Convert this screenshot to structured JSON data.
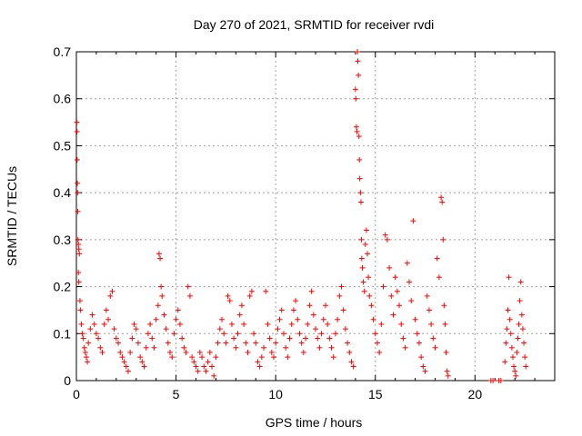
{
  "chart_data": {
    "type": "scatter",
    "title": "Day 270 of 2021, SRMTID for receiver rvdi",
    "xlabel": "GPS time / hours",
    "ylabel": "SRMTID / TECUs",
    "xlim": [
      0,
      24
    ],
    "ylim": [
      0,
      0.7
    ],
    "x_ticks": [
      0,
      5,
      10,
      15,
      20
    ],
    "y_ticks": [
      0,
      0.1,
      0.2,
      0.3,
      0.4,
      0.5,
      0.6,
      0.7
    ],
    "x_tick_labels": [
      "0",
      "5",
      "10",
      "15",
      "20"
    ],
    "y_tick_labels": [
      "0",
      "0.1",
      "0.2",
      "0.3",
      "0.4",
      "0.5",
      "0.6",
      "0.7"
    ],
    "grid": true,
    "marker": "plus",
    "color": "#ff0000",
    "series": [
      {
        "name": "SRMTID",
        "points": [
          [
            0.02,
            0.55
          ],
          [
            0.03,
            0.53
          ],
          [
            0.04,
            0.47
          ],
          [
            0.05,
            0.42
          ],
          [
            0.06,
            0.4
          ],
          [
            0.07,
            0.36
          ],
          [
            0.08,
            0.3
          ],
          [
            0.1,
            0.29
          ],
          [
            0.12,
            0.28
          ],
          [
            0.15,
            0.27
          ],
          [
            0.1,
            0.23
          ],
          [
            0.12,
            0.21
          ],
          [
            0.18,
            0.17
          ],
          [
            0.2,
            0.15
          ],
          [
            0.25,
            0.12
          ],
          [
            0.3,
            0.1
          ],
          [
            0.35,
            0.09
          ],
          [
            0.4,
            0.07
          ],
          [
            0.45,
            0.06
          ],
          [
            0.5,
            0.05
          ],
          [
            0.55,
            0.04
          ],
          [
            0.6,
            0.08
          ],
          [
            0.7,
            0.11
          ],
          [
            0.8,
            0.14
          ],
          [
            0.9,
            0.12
          ],
          [
            1.0,
            0.1
          ],
          [
            1.1,
            0.09
          ],
          [
            1.2,
            0.07
          ],
          [
            1.3,
            0.06
          ],
          [
            1.4,
            0.12
          ],
          [
            1.5,
            0.15
          ],
          [
            1.6,
            0.13
          ],
          [
            1.7,
            0.18
          ],
          [
            1.8,
            0.19
          ],
          [
            1.9,
            0.11
          ],
          [
            2.0,
            0.09
          ],
          [
            2.1,
            0.08
          ],
          [
            2.2,
            0.06
          ],
          [
            2.3,
            0.05
          ],
          [
            2.4,
            0.04
          ],
          [
            2.5,
            0.03
          ],
          [
            2.6,
            0.02
          ],
          [
            2.7,
            0.06
          ],
          [
            2.8,
            0.09
          ],
          [
            2.9,
            0.12
          ],
          [
            3.0,
            0.11
          ],
          [
            3.1,
            0.08
          ],
          [
            3.2,
            0.05
          ],
          [
            3.3,
            0.04
          ],
          [
            3.4,
            0.03
          ],
          [
            3.5,
            0.07
          ],
          [
            3.6,
            0.1
          ],
          [
            3.7,
            0.12
          ],
          [
            3.8,
            0.09
          ],
          [
            3.9,
            0.07
          ],
          [
            4.0,
            0.13
          ],
          [
            4.1,
            0.16
          ],
          [
            4.15,
            0.27
          ],
          [
            4.2,
            0.26
          ],
          [
            4.25,
            0.2
          ],
          [
            4.3,
            0.18
          ],
          [
            4.4,
            0.14
          ],
          [
            4.5,
            0.11
          ],
          [
            4.6,
            0.08
          ],
          [
            4.7,
            0.06
          ],
          [
            4.8,
            0.05
          ],
          [
            4.9,
            0.1
          ],
          [
            5.0,
            0.13
          ],
          [
            5.1,
            0.15
          ],
          [
            5.2,
            0.12
          ],
          [
            5.3,
            0.09
          ],
          [
            5.4,
            0.07
          ],
          [
            5.5,
            0.06
          ],
          [
            5.6,
            0.2
          ],
          [
            5.7,
            0.18
          ],
          [
            5.8,
            0.05
          ],
          [
            5.9,
            0.04
          ],
          [
            6.0,
            0.03
          ],
          [
            6.1,
            0.02
          ],
          [
            6.2,
            0.06
          ],
          [
            6.3,
            0.05
          ],
          [
            6.4,
            0.03
          ],
          [
            6.5,
            0.02
          ],
          [
            6.6,
            0.04
          ],
          [
            6.7,
            0.06
          ],
          [
            6.8,
            0.03
          ],
          [
            6.9,
            0.01
          ],
          [
            7.0,
            0.05
          ],
          [
            7.1,
            0.08
          ],
          [
            7.2,
            0.11
          ],
          [
            7.3,
            0.13
          ],
          [
            7.4,
            0.1
          ],
          [
            7.5,
            0.08
          ],
          [
            7.6,
            0.18
          ],
          [
            7.7,
            0.17
          ],
          [
            7.8,
            0.12
          ],
          [
            7.9,
            0.09
          ],
          [
            8.0,
            0.07
          ],
          [
            8.1,
            0.1
          ],
          [
            8.2,
            0.14
          ],
          [
            8.3,
            0.16
          ],
          [
            8.4,
            0.12
          ],
          [
            8.5,
            0.08
          ],
          [
            8.6,
            0.06
          ],
          [
            8.7,
            0.18
          ],
          [
            8.8,
            0.19
          ],
          [
            8.9,
            0.1
          ],
          [
            9.0,
            0.08
          ],
          [
            9.1,
            0.04
          ],
          [
            9.2,
            0.03
          ],
          [
            9.3,
            0.05
          ],
          [
            9.4,
            0.07
          ],
          [
            9.5,
            0.19
          ],
          [
            9.6,
            0.12
          ],
          [
            9.7,
            0.09
          ],
          [
            9.8,
            0.06
          ],
          [
            9.9,
            0.05
          ],
          [
            10.0,
            0.08
          ],
          [
            10.1,
            0.11
          ],
          [
            10.2,
            0.13
          ],
          [
            10.3,
            0.15
          ],
          [
            10.4,
            0.1
          ],
          [
            10.5,
            0.07
          ],
          [
            10.6,
            0.05
          ],
          [
            10.7,
            0.09
          ],
          [
            10.8,
            0.12
          ],
          [
            10.9,
            0.15
          ],
          [
            11.0,
            0.17
          ],
          [
            11.1,
            0.13
          ],
          [
            11.2,
            0.1
          ],
          [
            11.3,
            0.08
          ],
          [
            11.4,
            0.06
          ],
          [
            11.5,
            0.09
          ],
          [
            11.6,
            0.12
          ],
          [
            11.7,
            0.16
          ],
          [
            11.8,
            0.19
          ],
          [
            11.9,
            0.14
          ],
          [
            12.0,
            0.11
          ],
          [
            12.1,
            0.09
          ],
          [
            12.2,
            0.07
          ],
          [
            12.3,
            0.1
          ],
          [
            12.4,
            0.13
          ],
          [
            12.5,
            0.16
          ],
          [
            12.6,
            0.12
          ],
          [
            12.7,
            0.09
          ],
          [
            12.8,
            0.07
          ],
          [
            12.9,
            0.05
          ],
          [
            13.0,
            0.1
          ],
          [
            13.1,
            0.13
          ],
          [
            13.2,
            0.18
          ],
          [
            13.3,
            0.2
          ],
          [
            13.4,
            0.15
          ],
          [
            13.5,
            0.11
          ],
          [
            13.6,
            0.08
          ],
          [
            13.7,
            0.06
          ],
          [
            13.8,
            0.04
          ],
          [
            13.9,
            0.03
          ],
          [
            14.0,
            0.62
          ],
          [
            14.02,
            0.6
          ],
          [
            14.05,
            0.54
          ],
          [
            14.08,
            0.53
          ],
          [
            14.1,
            0.7
          ],
          [
            14.12,
            0.68
          ],
          [
            14.15,
            0.65
          ],
          [
            14.18,
            0.52
          ],
          [
            14.2,
            0.47
          ],
          [
            14.22,
            0.43
          ],
          [
            14.25,
            0.4
          ],
          [
            14.28,
            0.38
          ],
          [
            14.3,
            0.3
          ],
          [
            14.32,
            0.26
          ],
          [
            14.35,
            0.24
          ],
          [
            14.4,
            0.21
          ],
          [
            14.45,
            0.19
          ],
          [
            14.5,
            0.29
          ],
          [
            14.55,
            0.32
          ],
          [
            14.6,
            0.27
          ],
          [
            14.65,
            0.22
          ],
          [
            14.7,
            0.18
          ],
          [
            14.8,
            0.16
          ],
          [
            14.9,
            0.13
          ],
          [
            15.0,
            0.1
          ],
          [
            15.1,
            0.08
          ],
          [
            15.2,
            0.06
          ],
          [
            15.3,
            0.12
          ],
          [
            15.4,
            0.2
          ],
          [
            15.5,
            0.31
          ],
          [
            15.6,
            0.3
          ],
          [
            15.7,
            0.24
          ],
          [
            15.8,
            0.18
          ],
          [
            15.9,
            0.14
          ],
          [
            16.0,
            0.22
          ],
          [
            16.1,
            0.19
          ],
          [
            16.2,
            0.16
          ],
          [
            16.3,
            0.12
          ],
          [
            16.4,
            0.09
          ],
          [
            16.5,
            0.07
          ],
          [
            16.6,
            0.25
          ],
          [
            16.7,
            0.21
          ],
          [
            16.8,
            0.17
          ],
          [
            16.9,
            0.34
          ],
          [
            17.0,
            0.13
          ],
          [
            17.1,
            0.1
          ],
          [
            17.2,
            0.08
          ],
          [
            17.3,
            0.05
          ],
          [
            17.4,
            0.03
          ],
          [
            17.5,
            0.02
          ],
          [
            17.6,
            0.18
          ],
          [
            17.7,
            0.15
          ],
          [
            17.8,
            0.12
          ],
          [
            17.9,
            0.09
          ],
          [
            18.0,
            0.07
          ],
          [
            18.1,
            0.26
          ],
          [
            18.2,
            0.22
          ],
          [
            18.3,
            0.39
          ],
          [
            18.35,
            0.38
          ],
          [
            18.4,
            0.3
          ],
          [
            18.45,
            0.16
          ],
          [
            18.5,
            0.12
          ],
          [
            18.55,
            0.06
          ],
          [
            18.6,
            0.02
          ],
          [
            18.65,
            0.01
          ],
          [
            20.8,
            0.0
          ],
          [
            20.9,
            0.0
          ],
          [
            21.2,
            0.0
          ],
          [
            21.3,
            0.0
          ],
          [
            21.5,
            0.04
          ],
          [
            21.55,
            0.08
          ],
          [
            21.6,
            0.11
          ],
          [
            21.65,
            0.15
          ],
          [
            21.7,
            0.22
          ],
          [
            21.75,
            0.13
          ],
          [
            21.8,
            0.1
          ],
          [
            21.85,
            0.07
          ],
          [
            21.9,
            0.05
          ],
          [
            21.95,
            0.03
          ],
          [
            22.0,
            0.02
          ],
          [
            22.05,
            0.01
          ],
          [
            22.1,
            0.06
          ],
          [
            22.15,
            0.09
          ],
          [
            22.2,
            0.12
          ],
          [
            22.25,
            0.17
          ],
          [
            22.3,
            0.21
          ],
          [
            22.35,
            0.14
          ],
          [
            22.4,
            0.11
          ],
          [
            22.45,
            0.08
          ],
          [
            22.5,
            0.05
          ],
          [
            22.55,
            0.03
          ]
        ]
      }
    ]
  }
}
